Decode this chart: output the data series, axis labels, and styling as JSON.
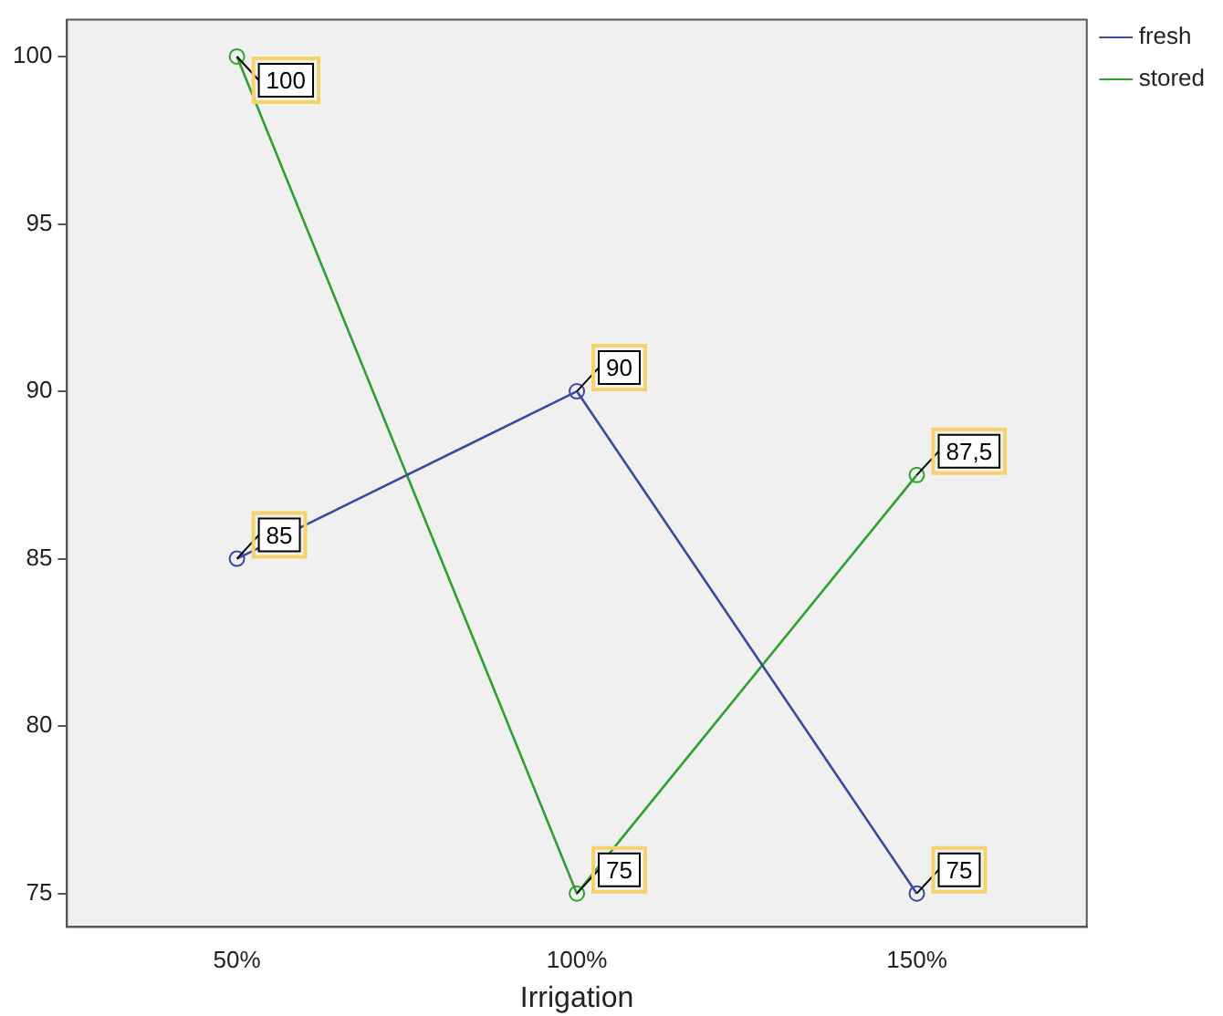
{
  "chart_data": {
    "type": "line",
    "xlabel": "Irrigation",
    "categories": [
      "50%",
      "100%",
      "150%"
    ],
    "series": [
      {
        "name": "fresh",
        "color": "#3b4a9e",
        "values": [
          85,
          90,
          75
        ],
        "value_labels": [
          "85",
          "90",
          "75"
        ]
      },
      {
        "name": "stored",
        "color": "#2ea12e",
        "values": [
          100,
          75,
          87.5
        ],
        "value_labels": [
          "100",
          "75",
          "87,5"
        ]
      }
    ],
    "ylim": [
      74,
      101.1
    ],
    "yticks": [
      75,
      80,
      85,
      90,
      95,
      100
    ],
    "grid": false,
    "legend": "top right",
    "marker": "circle",
    "line_style": "solid"
  }
}
